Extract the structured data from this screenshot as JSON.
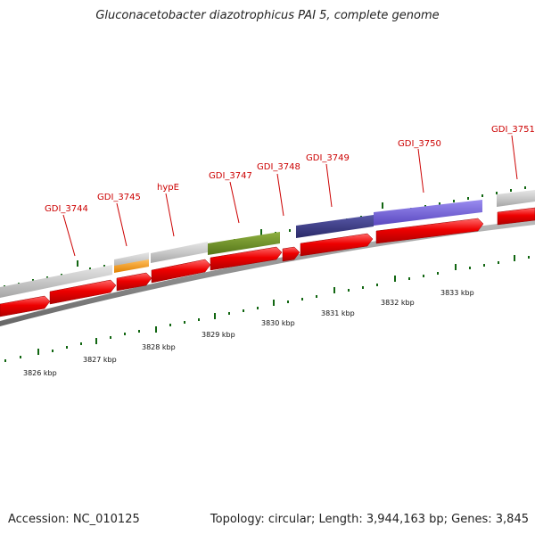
{
  "title": "Gluconacetobacter diazotrophicus PAI 5, complete genome",
  "footer": {
    "accession": "Accession: NC_010125",
    "summary": "Topology: circular; Length: 3,944,163 bp; Genes: 3,845"
  },
  "colors": {
    "cds": "#ee0000",
    "gene": "#c4c4c4",
    "label": "#cc0000",
    "backbone": "#888888",
    "tick": "#116611",
    "feature_orange": "#ff9900",
    "feature_olive": "#6b8e23",
    "feature_navy": "#3a3a80",
    "feature_violet": "#7060d0"
  },
  "gene_labels": [
    "GDI_3744",
    "GDI_3745",
    "hypE",
    "GDI_3747",
    "GDI_3748",
    "GDI_3749",
    "GDI_3750",
    "GDI_3751"
  ],
  "tick_labels": [
    "3826 kbp",
    "3827 kbp",
    "3828 kbp",
    "3829 kbp",
    "3830 kbp",
    "3831 kbp",
    "3832 kbp",
    "3833 kbp"
  ]
}
